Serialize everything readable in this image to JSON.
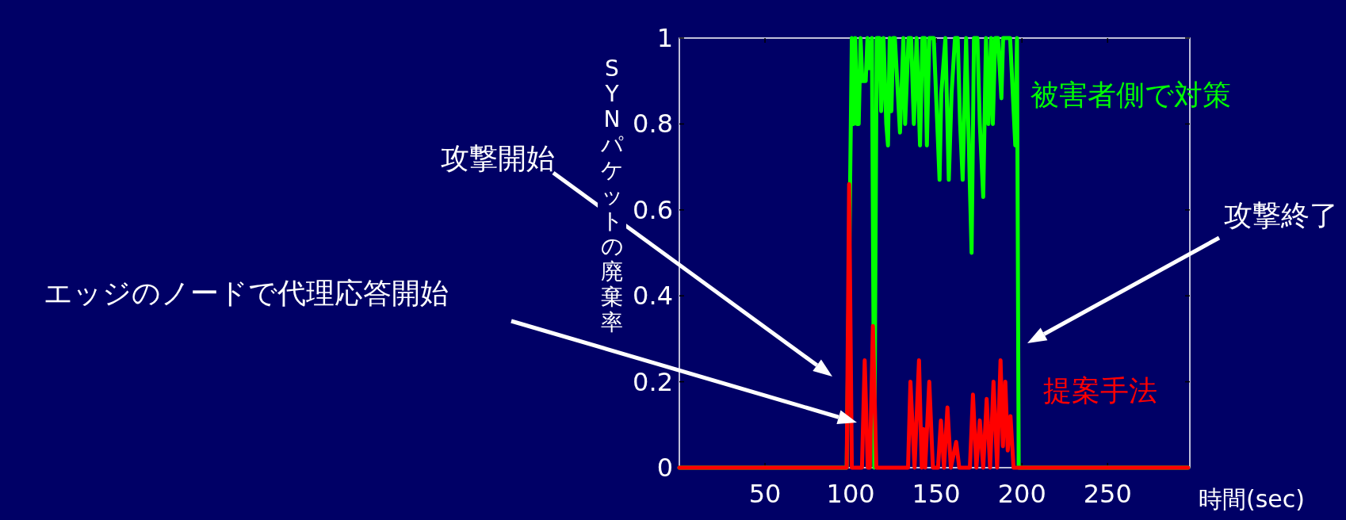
{
  "chart_data": {
    "type": "line",
    "xlabel": "時間(sec)",
    "ylabel": "SYNパケットの廃棄率",
    "xlim": [
      0,
      298
    ],
    "ylim": [
      0,
      1
    ],
    "xticks": [
      50,
      100,
      150,
      200,
      250
    ],
    "yticks": [
      0,
      0.2,
      0.4,
      0.6,
      0.8,
      1
    ],
    "series": [
      {
        "name": "被害者側で対策",
        "color": "#00ff00",
        "x": [
          0,
          97.7,
          100.7,
          101.7,
          102.7,
          103.7,
          104.7,
          105.8,
          106.8,
          108.8,
          109.8,
          110.8,
          112.4,
          113.8,
          115.2,
          116.8,
          117.8,
          119.2,
          120.8,
          121.8,
          122.8,
          123.8,
          124.8,
          125.8,
          128.8,
          130.8,
          131.8,
          133.8,
          135.3,
          136.9,
          138.5,
          140.5,
          141.9,
          143.3,
          144.5,
          145.9,
          148.5,
          151.9,
          152.9,
          155.3,
          157.3,
          158.9,
          160.9,
          162.5,
          163.9,
          165.4,
          167.4,
          170.6,
          172,
          174,
          175.4,
          177.4,
          179,
          180.4,
          182,
          183,
          184.4,
          186,
          188,
          189,
          193.1,
          196.1,
          197.1,
          198.1,
          297
        ],
        "values": [
          0,
          0,
          1,
          0.8,
          1,
          0.8,
          0.8,
          1,
          0.9,
          0.9,
          1,
          0.93,
          1,
          0,
          1,
          1,
          0.83,
          1,
          0.8,
          0.75,
          1,
          0.83,
          1,
          1,
          0.78,
          1,
          0.8,
          1,
          1,
          0.8,
          1,
          0.75,
          1,
          1,
          0.75,
          1,
          1,
          0.67,
          0.87,
          1,
          0.67,
          0.87,
          1,
          1,
          0.8,
          0.67,
          1,
          0.5,
          1,
          1,
          0.8,
          0.63,
          1,
          0.8,
          1,
          0.8,
          1,
          1,
          0.86,
          1,
          1,
          0.75,
          1,
          0,
          0
        ]
      },
      {
        "name": "提案手法",
        "color": "#ff0000",
        "x": [
          0,
          97.7,
          99.1,
          100.7,
          106.6,
          108.2,
          110,
          111.2,
          113,
          115,
          133.5,
          134.9,
          137.3,
          139.9,
          141.5,
          142.5,
          143.5,
          145.9,
          148,
          151,
          152.7,
          154.5,
          156.5,
          158.5,
          161.6,
          163.4,
          169.6,
          171.4,
          173.4,
          175.4,
          177.4,
          179.4,
          181.4,
          183.4,
          185.5,
          187.5,
          188.9,
          190.3,
          191.7,
          193.3,
          195.1,
          297
        ],
        "values": [
          0,
          0,
          0.66,
          0,
          0,
          0.25,
          0,
          0,
          0.33,
          0,
          0,
          0.2,
          0,
          0.25,
          0,
          0.09,
          0,
          0.2,
          0,
          0,
          0.11,
          0,
          0.14,
          0,
          0.06,
          0,
          0,
          0.17,
          0,
          0.11,
          0,
          0.16,
          0,
          0.2,
          0,
          0.25,
          0.05,
          0.2,
          0.04,
          0.12,
          0,
          0
        ]
      }
    ],
    "annotations": [
      "攻撃開始",
      "エッジのノードで代理応答開始",
      "攻撃終了"
    ]
  }
}
